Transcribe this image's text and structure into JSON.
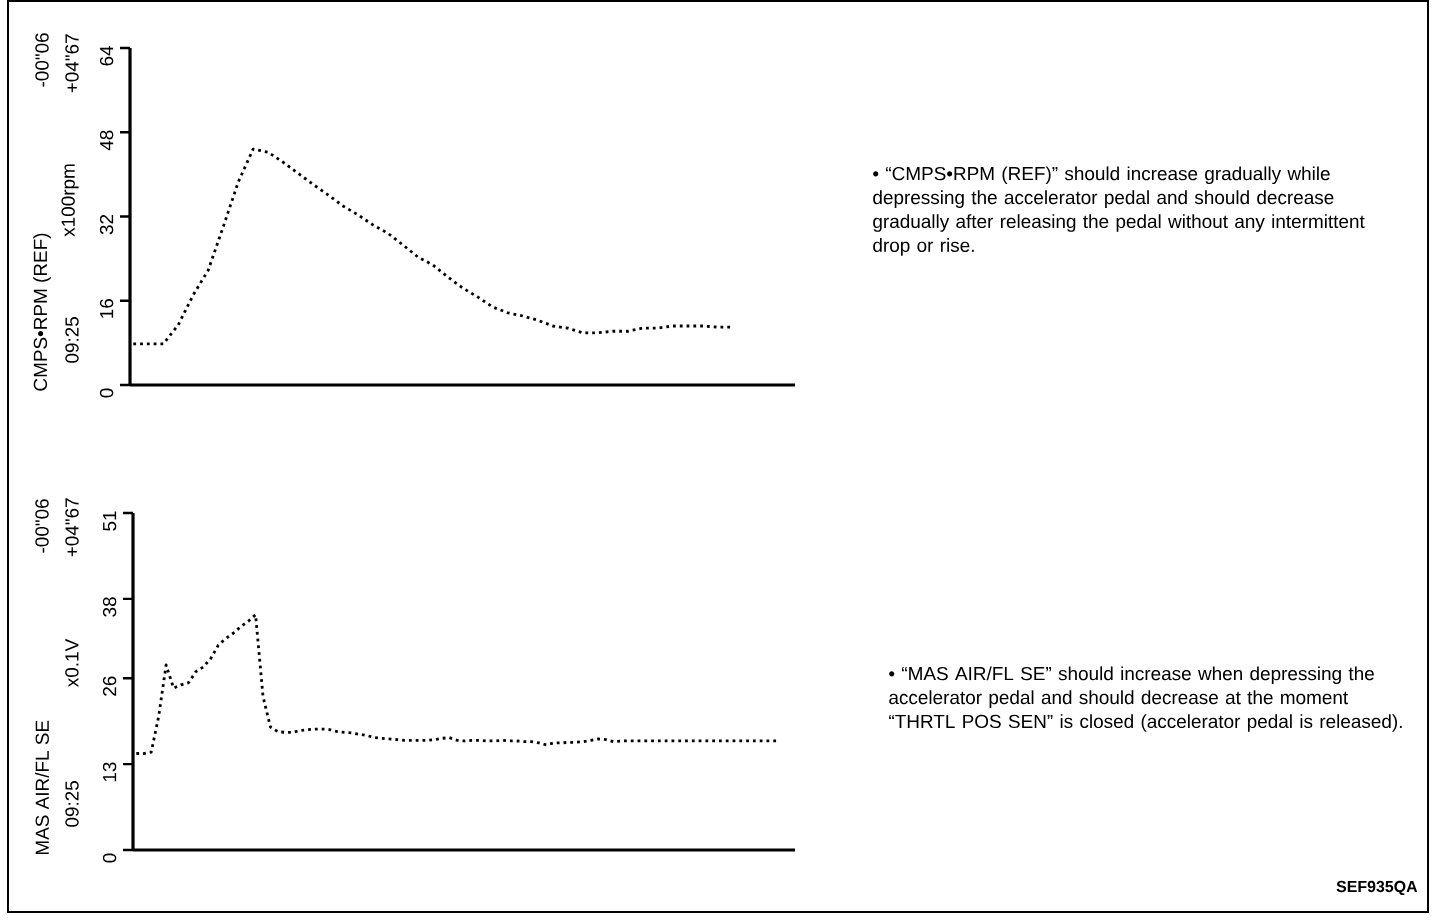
{
  "chart_data": [
    {
      "type": "line",
      "ylabel": "CMPS•RPM (REF)",
      "line_style": "dotted",
      "tick_labels": "y",
      "annotations": [
        "x100rpm",
        "09:25",
        "-00\"06",
        "+04\"67",
        "• “CMPS•RPM (REF)” should increase gradually while depressing the accelerator pedal and should decrease gradually after releasing the pedal without any intermittent drop or rise."
      ],
      "categories": [
        null,
        null,
        null,
        null,
        null,
        null,
        null,
        null,
        null,
        null,
        null,
        null,
        null,
        null,
        null,
        null,
        null,
        null,
        null,
        null,
        null,
        null,
        null,
        null,
        null,
        null,
        null,
        null,
        null,
        null,
        null,
        null,
        null,
        null,
        null,
        null,
        null,
        null,
        null,
        null,
        null,
        null,
        null,
        null,
        null
      ],
      "ylim": [
        0,
        64
      ],
      "yticks": [
        0,
        16,
        32,
        48,
        64
      ],
      "series": [
        {
          "color": "#000000",
          "values": [
            7.8,
            7.8,
            7.8,
            11.4,
            17.1,
            21.8,
            30.0,
            38.5,
            44.8,
            44.2,
            42.3,
            40.2,
            38.1,
            36.1,
            34.0,
            32.3,
            30.4,
            28.8,
            26.6,
            24.3,
            22.8,
            20.5,
            18.4,
            16.7,
            14.8,
            13.7,
            13.1,
            12.3,
            11.2,
            10.8,
            9.9,
            9.9,
            10.2,
            10.2,
            10.8,
            10.8,
            11.2,
            11.2,
            11.2,
            11.0,
            11.0,
            null,
            null,
            null,
            null
          ]
        }
      ]
    },
    {
      "type": "line",
      "ylabel": "MAS AIR/FL SE",
      "line_style": "dotted",
      "tick_labels": "y",
      "annotations": [
        "x0.1V",
        "09:25",
        "-00\"06",
        "+04\"67",
        "• “MAS AIR/FL SE” should increase when depressing the accelerator pedal and should decrease at the moment “THRTL POS SEN” is closed (accelerator pedal is released).",
        "SEF935QA"
      ],
      "categories": [
        null,
        null,
        null,
        null,
        null,
        null,
        null,
        null,
        null,
        null,
        null,
        null,
        null,
        null,
        null,
        null,
        null,
        null,
        null,
        null,
        null,
        null,
        null,
        null,
        null,
        null,
        null,
        null,
        null,
        null,
        null,
        null,
        null,
        null,
        null,
        null,
        null,
        null,
        null,
        null,
        null,
        null,
        null,
        null,
        null,
        null,
        null,
        null,
        null,
        null,
        null,
        null,
        null,
        null,
        null,
        null,
        null,
        null,
        null,
        null,
        null,
        null,
        null,
        null,
        null,
        null,
        null,
        null,
        null,
        null,
        null,
        null,
        null,
        null,
        null,
        null,
        null,
        null,
        null,
        null,
        null,
        null,
        null,
        null,
        null,
        null,
        null,
        null,
        null
      ],
      "ylim": [
        0,
        51
      ],
      "yticks": [
        0,
        13,
        26,
        38,
        51
      ],
      "series": [
        {
          "color": "#000000",
          "values": [
            14.6,
            14.6,
            14.8,
            20.2,
            28,
            24.5,
            25.0,
            25.3,
            27.0,
            27.7,
            29.0,
            31.0,
            32.0,
            32.8,
            33.8,
            34.6,
            35.6,
            23.2,
            18.6,
            17.9,
            17.8,
            17.8,
            18.1,
            18.2,
            18.3,
            18.3,
            18.2,
            17.9,
            17.8,
            17.7,
            17.5,
            17.3,
            17.0,
            16.9,
            16.8,
            16.7,
            16.6,
            16.6,
            16.6,
            16.6,
            16.7,
            16.9,
            17.0,
            16.6,
            16.5,
            16.6,
            16.6,
            16.5,
            16.5,
            16.6,
            16.5,
            16.5,
            16.4,
            16.4,
            16.2,
            15.9,
            16.2,
            16.2,
            16.3,
            16.3,
            16.4,
            16.6,
            16.8,
            16.7,
            16.4,
            16.5,
            16.5,
            16.5,
            16.5,
            16.5,
            16.5,
            16.5,
            16.5,
            16.5,
            16.5,
            16.5,
            16.5,
            16.5,
            16.5,
            16.5,
            16.5,
            16.5,
            16.5,
            16.5,
            16.5,
            16.5,
            16.5,
            null,
            null
          ]
        }
      ]
    }
  ]
}
